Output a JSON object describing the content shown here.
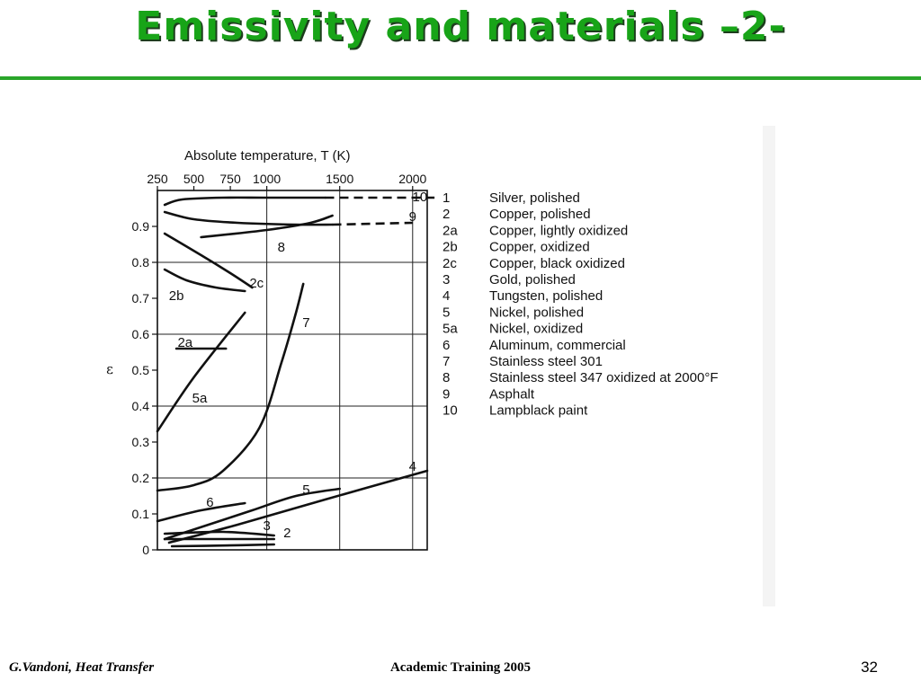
{
  "slide": {
    "title": "Emissivity and materials –2-",
    "footer_left": "G.Vandoni, Heat Transfer",
    "footer_center": "Academic Training 2005",
    "page_number": "32",
    "accent_color": "#18a418"
  },
  "chart_data": {
    "type": "line",
    "title": "",
    "top_axis_label": "Absolute temperature, T (K)",
    "ylabel": "ε",
    "x_range": [
      250,
      2100
    ],
    "ylim": [
      0,
      1.0
    ],
    "x_ticks": [
      "250",
      "500",
      "750",
      "1000",
      "1500",
      "2000"
    ],
    "y_ticks": [
      "0",
      "0.1",
      "0.2",
      "0.3",
      "0.4",
      "0.5",
      "0.6",
      "0.7",
      "0.8",
      "0.9"
    ],
    "grid": true,
    "series": [
      {
        "name": "10",
        "label_pos": [
          2050,
          0.97
        ],
        "points": [
          [
            300,
            0.96
          ],
          [
            420,
            0.975
          ],
          [
            700,
            0.98
          ],
          [
            1000,
            0.98
          ],
          [
            1400,
            0.98
          ]
        ],
        "dashed": [
          [
            1400,
            0.98
          ],
          [
            2150,
            0.98
          ]
        ]
      },
      {
        "name": "9",
        "label_pos": [
          2000,
          0.915
        ],
        "points": [
          [
            300,
            0.94
          ],
          [
            500,
            0.92
          ],
          [
            800,
            0.91
          ],
          [
            1200,
            0.905
          ],
          [
            1450,
            0.905
          ]
        ],
        "dashed": [
          [
            1450,
            0.905
          ],
          [
            2000,
            0.91
          ]
        ]
      },
      {
        "name": "8",
        "label_pos": [
          1100,
          0.83
        ],
        "points": [
          [
            550,
            0.87
          ],
          [
            1000,
            0.89
          ],
          [
            1300,
            0.91
          ],
          [
            1450,
            0.93
          ]
        ]
      },
      {
        "name": "2c",
        "label_pos": [
          930,
          0.73
        ],
        "points": [
          [
            300,
            0.88
          ],
          [
            550,
            0.82
          ],
          [
            750,
            0.77
          ],
          [
            900,
            0.73
          ]
        ]
      },
      {
        "name": "2b",
        "label_pos": [
          380,
          0.695
        ],
        "points": [
          [
            300,
            0.78
          ],
          [
            450,
            0.75
          ],
          [
            650,
            0.73
          ],
          [
            850,
            0.72
          ]
        ]
      },
      {
        "name": "2a",
        "label_pos": [
          440,
          0.565
        ],
        "points": [
          [
            380,
            0.56
          ],
          [
            720,
            0.56
          ]
        ]
      },
      {
        "name": "5a",
        "label_pos": [
          540,
          0.41
        ],
        "points": [
          [
            250,
            0.33
          ],
          [
            500,
            0.48
          ],
          [
            850,
            0.66
          ]
        ]
      },
      {
        "name": "7",
        "label_pos": [
          1270,
          0.62
        ],
        "points": [
          [
            250,
            0.165
          ],
          [
            500,
            0.18
          ],
          [
            700,
            0.22
          ],
          [
            950,
            0.34
          ],
          [
            1100,
            0.52
          ],
          [
            1200,
            0.66
          ],
          [
            1250,
            0.74
          ]
        ]
      },
      {
        "name": "6",
        "label_pos": [
          610,
          0.12
        ],
        "points": [
          [
            250,
            0.08
          ],
          [
            550,
            0.11
          ],
          [
            850,
            0.13
          ]
        ]
      },
      {
        "name": "5",
        "label_pos": [
          1270,
          0.155
        ],
        "points": [
          [
            300,
            0.03
          ],
          [
            600,
            0.07
          ],
          [
            900,
            0.11
          ],
          [
            1200,
            0.15
          ],
          [
            1500,
            0.17
          ]
        ]
      },
      {
        "name": "4",
        "label_pos": [
          2000,
          0.22
        ],
        "points": [
          [
            330,
            0.02
          ],
          [
            800,
            0.07
          ],
          [
            1400,
            0.14
          ],
          [
            2100,
            0.22
          ]
        ]
      },
      {
        "name": "3",
        "label_pos": [
          1000,
          0.055
        ],
        "points": [
          [
            300,
            0.045
          ],
          [
            700,
            0.05
          ],
          [
            1050,
            0.04
          ]
        ]
      },
      {
        "name": "2",
        "label_pos": [
          1140,
          0.035
        ],
        "points": [
          [
            300,
            0.03
          ],
          [
            700,
            0.03
          ],
          [
            1050,
            0.03
          ]
        ]
      },
      {
        "name": "1",
        "label_pos": [
          0,
          0
        ],
        "points": [
          [
            350,
            0.01
          ],
          [
            700,
            0.012
          ],
          [
            1050,
            0.015
          ]
        ]
      }
    ],
    "legend": [
      {
        "key": "1",
        "label": "Silver, polished"
      },
      {
        "key": "2",
        "label": "Copper, polished"
      },
      {
        "key": "2a",
        "label": "Copper, lightly oxidized"
      },
      {
        "key": "2b",
        "label": "Copper, oxidized"
      },
      {
        "key": "2c",
        "label": "Copper, black oxidized"
      },
      {
        "key": "3",
        "label": "Gold, polished"
      },
      {
        "key": "4",
        "label": "Tungsten, polished"
      },
      {
        "key": "5",
        "label": "Nickel, polished"
      },
      {
        "key": "5a",
        "label": "Nickel, oxidized"
      },
      {
        "key": "6",
        "label": "Aluminum, commercial"
      },
      {
        "key": "7",
        "label": "Stainless steel 301"
      },
      {
        "key": "8",
        "label": "Stainless steel 347 oxidized at 2000°F"
      },
      {
        "key": "9",
        "label": "Asphalt"
      },
      {
        "key": "10",
        "label": "Lampblack paint"
      }
    ],
    "legend_position": "right"
  }
}
